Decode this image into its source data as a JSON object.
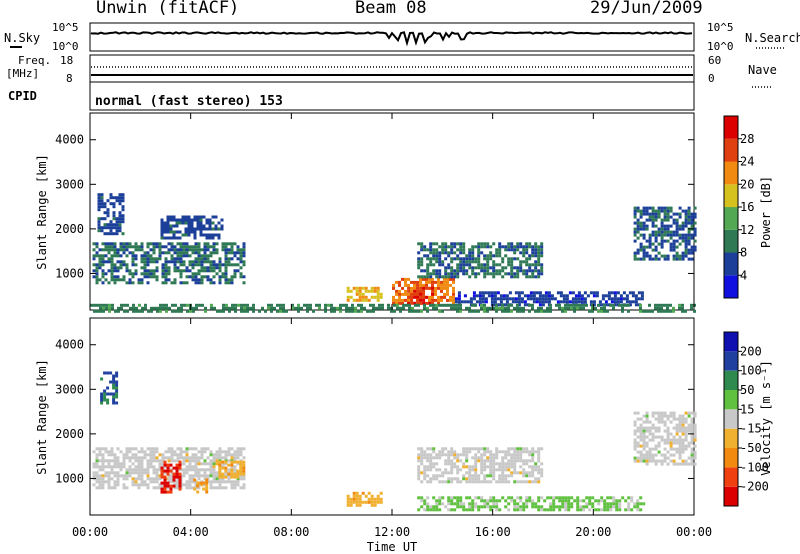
{
  "header": {
    "station": "Unwin (fitACF)",
    "beam": "Beam 08",
    "date": "29/Jun/2009"
  },
  "summary_panels": {
    "nsky_label": "N.Sky",
    "nsky_ticks": [
      "10^5",
      "10^0"
    ],
    "nsearch_label": "N.Search",
    "nsearch_ticks": [
      "10^5",
      "10^0"
    ],
    "freq_label": "Freq.",
    "freq_unit": "[MHz]",
    "freq_ticks": [
      "18",
      "8"
    ],
    "nave_label": "Nave",
    "nave_ticks": [
      "60",
      "0"
    ],
    "cpid_label": "CPID",
    "cpid_text": "normal (fast stereo) 153"
  },
  "colors": {
    "power_scale": [
      "#1010e0",
      "#1c3f9a",
      "#2f7a55",
      "#53a853",
      "#d6c21f",
      "#f08a10",
      "#e04010",
      "#dd0000"
    ],
    "velocity_scale": [
      "#dd0000",
      "#f04010",
      "#f28a10",
      "#f0b030",
      "#c8c8c8",
      "#60c040",
      "#2f8a50",
      "#2040a0",
      "#1010b0"
    ]
  },
  "chart_data": [
    {
      "type": "heatmap",
      "title": "Power",
      "ylabel": "Slant Range [km]",
      "xlabel": "Time UT",
      "x_ticks": [
        "00:00",
        "04:00",
        "08:00",
        "12:00",
        "16:00",
        "20:00",
        "00:00"
      ],
      "y_ticks": [
        "1000",
        "2000",
        "3000",
        "4000"
      ],
      "xlim_hours": [
        0,
        24
      ],
      "ylim_km": [
        180,
        4600
      ],
      "colorbar": {
        "label": "Power [dB]",
        "ticks": [
          "4",
          "8",
          "12",
          "16",
          "20",
          "24",
          "28"
        ],
        "range": [
          0,
          30
        ]
      },
      "regions": [
        {
          "t0": 0.1,
          "t1": 6.1,
          "r0": 800,
          "r1": 1700,
          "value": 8
        },
        {
          "t0": 0.3,
          "t1": 1.3,
          "r0": 1900,
          "r1": 2800,
          "value": 6
        },
        {
          "t0": 2.8,
          "t1": 5.2,
          "r0": 1800,
          "r1": 2300,
          "value": 6
        },
        {
          "t0": 10.2,
          "t1": 11.6,
          "r0": 400,
          "r1": 700,
          "value": 18
        },
        {
          "t0": 12.0,
          "t1": 14.5,
          "r0": 300,
          "r1": 900,
          "value": 22
        },
        {
          "t0": 12.6,
          "t1": 13.6,
          "r0": 300,
          "r1": 700,
          "value": 26
        },
        {
          "t0": 13.0,
          "t1": 18.0,
          "r0": 900,
          "r1": 1700,
          "value": 8
        },
        {
          "t0": 14.5,
          "t1": 22.0,
          "r0": 300,
          "r1": 600,
          "value": 5
        },
        {
          "t0": 21.6,
          "t1": 24.0,
          "r0": 1300,
          "r1": 2500,
          "value": 7
        },
        {
          "t0": 0.0,
          "t1": 24.0,
          "r0": 180,
          "r1": 320,
          "value": 10
        }
      ]
    },
    {
      "type": "heatmap",
      "title": "Velocity",
      "ylabel": "Slant Range [km]",
      "xlabel": "Time UT",
      "x_ticks": [
        "00:00",
        "04:00",
        "08:00",
        "12:00",
        "16:00",
        "20:00",
        "00:00"
      ],
      "y_ticks": [
        "1000",
        "2000",
        "3000",
        "4000"
      ],
      "xlim_hours": [
        0,
        24
      ],
      "ylim_km": [
        180,
        4600
      ],
      "colorbar": {
        "label": "Velocity [m s⁻¹]",
        "ticks": [
          "-200",
          "-100",
          "-50",
          "-15",
          "15",
          "50",
          "100",
          "200"
        ],
        "range": [
          -250,
          250
        ]
      },
      "regions": [
        {
          "t0": 0.1,
          "t1": 6.1,
          "r0": 800,
          "r1": 1700,
          "value": 0
        },
        {
          "t0": 2.8,
          "t1": 3.6,
          "r0": 700,
          "r1": 1400,
          "value": -200
        },
        {
          "t0": 4.1,
          "t1": 4.8,
          "r0": 700,
          "r1": 1000,
          "value": -80
        },
        {
          "t0": 5.1,
          "t1": 6.1,
          "r0": 1000,
          "r1": 1400,
          "value": -70
        },
        {
          "t0": 0.4,
          "t1": 1.0,
          "r0": 2700,
          "r1": 3400,
          "value": 150
        },
        {
          "t0": 10.2,
          "t1": 11.6,
          "r0": 400,
          "r1": 700,
          "value": -60
        },
        {
          "t0": 13.0,
          "t1": 18.0,
          "r0": 900,
          "r1": 1700,
          "value": 0
        },
        {
          "t0": 13.0,
          "t1": 22.0,
          "r0": 300,
          "r1": 600,
          "value": 40
        },
        {
          "t0": 21.6,
          "t1": 24.0,
          "r0": 1300,
          "r1": 2500,
          "value": 0
        }
      ]
    }
  ]
}
